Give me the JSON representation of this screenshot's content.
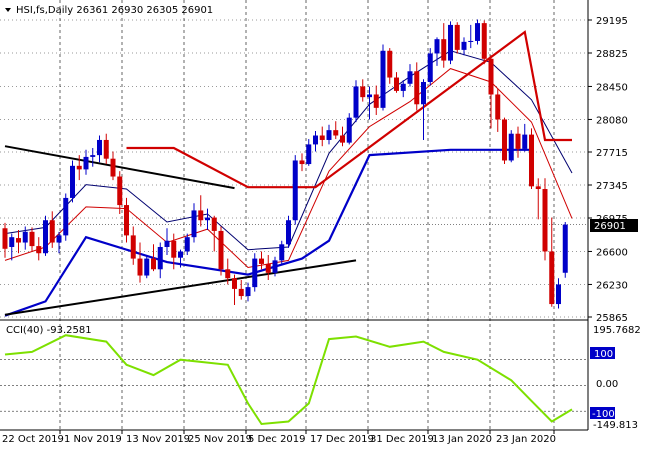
{
  "main": {
    "header": "HSI,fs,Daily  26361 26930 26305 26901",
    "current_price": "26901",
    "y_ticks": [
      "29195",
      "28825",
      "28450",
      "28080",
      "27715",
      "27345",
      "26975",
      "26600",
      "26230",
      "25865"
    ]
  },
  "cci": {
    "label": "CCI(40) -93.2581",
    "top_value": "195.7682",
    "level_high": "100",
    "zero": "0.00",
    "level_low": "-100",
    "bottom_value": "-149.813",
    "current_value": "-93.2581"
  },
  "x_labels": [
    "22 Oct 2019",
    "1 Nov 2019",
    "13 Nov 2019",
    "25 Nov 2019",
    "5 Dec 2019",
    "17 Dec 2019",
    "31 Dec 2019",
    "13 Jan 2020",
    "23 Jan 2020"
  ],
  "colors": {
    "bull": "#0000c8",
    "bear": "#d00000",
    "upper_band": "#0000c8",
    "lower_band": "#d00000",
    "fast_ma": "#d00000",
    "slow_ma": "#000070",
    "trend_line": "#000000",
    "cci_line": "#7de000",
    "grid": "#000000"
  },
  "chart_data": {
    "type": "candlestick",
    "title": "HSI,fs,Daily",
    "ohlc_last": {
      "open": 26361,
      "high": 26930,
      "low": 26305,
      "close": 26901
    },
    "x_labels": [
      "22 Oct 2019",
      "1 Nov 2019",
      "13 Nov 2019",
      "25 Nov 2019",
      "5 Dec 2019",
      "17 Dec 2019",
      "31 Dec 2019",
      "13 Jan 2020",
      "23 Jan 2020"
    ],
    "ylim": [
      25865,
      29195
    ],
    "candles": [
      [
        26860,
        26920,
        26530,
        26630
      ],
      [
        26650,
        26800,
        26500,
        26760
      ],
      [
        26750,
        26840,
        26580,
        26700
      ],
      [
        26700,
        26880,
        26620,
        26820
      ],
      [
        26820,
        26870,
        26600,
        26660
      ],
      [
        26660,
        26760,
        26500,
        26580
      ],
      [
        26580,
        27000,
        26550,
        26950
      ],
      [
        26950,
        27050,
        26640,
        26700
      ],
      [
        26700,
        26820,
        26580,
        26780
      ],
      [
        26780,
        27250,
        26720,
        27200
      ],
      [
        27200,
        27620,
        27150,
        27560
      ],
      [
        27560,
        27680,
        27400,
        27520
      ],
      [
        27520,
        27740,
        27460,
        27660
      ],
      [
        27660,
        27760,
        27550,
        27680
      ],
      [
        27680,
        27900,
        27600,
        27850
      ],
      [
        27850,
        27920,
        27580,
        27640
      ],
      [
        27640,
        27720,
        27400,
        27440
      ],
      [
        27440,
        27500,
        27020,
        27120
      ],
      [
        27120,
        27200,
        26700,
        26780
      ],
      [
        26780,
        26880,
        26450,
        26520
      ],
      [
        26520,
        26700,
        26250,
        26330
      ],
      [
        26330,
        26560,
        26300,
        26520
      ],
      [
        26520,
        26680,
        26380,
        26400
      ],
      [
        26400,
        26700,
        26300,
        26650
      ],
      [
        26650,
        26860,
        26560,
        26720
      ],
      [
        26720,
        26800,
        26400,
        26530
      ],
      [
        26530,
        26620,
        26420,
        26600
      ],
      [
        26600,
        26800,
        26560,
        26760
      ],
      [
        26760,
        27140,
        26700,
        27060
      ],
      [
        27060,
        27230,
        26880,
        26950
      ],
      [
        26950,
        27080,
        26840,
        26980
      ],
      [
        26980,
        27000,
        26600,
        26830
      ],
      [
        26830,
        26880,
        26330,
        26400
      ],
      [
        26400,
        26520,
        26230,
        26300
      ],
      [
        26300,
        26340,
        26000,
        26180
      ],
      [
        26180,
        26280,
        26060,
        26100
      ],
      [
        26100,
        26250,
        26040,
        26200
      ],
      [
        26200,
        26580,
        26150,
        26520
      ],
      [
        26520,
        26600,
        26400,
        26460
      ],
      [
        26460,
        26560,
        26280,
        26360
      ],
      [
        26360,
        26540,
        26320,
        26500
      ],
      [
        26500,
        26720,
        26460,
        26680
      ],
      [
        26680,
        27000,
        26640,
        26950
      ],
      [
        26950,
        27680,
        26900,
        27620
      ],
      [
        27620,
        27700,
        27500,
        27580
      ],
      [
        27580,
        27860,
        27560,
        27800
      ],
      [
        27800,
        27950,
        27720,
        27900
      ],
      [
        27900,
        28000,
        27780,
        27850
      ],
      [
        27850,
        28020,
        27800,
        27960
      ],
      [
        27960,
        28060,
        27860,
        27900
      ],
      [
        27900,
        28000,
        27780,
        27820
      ],
      [
        27820,
        28150,
        27800,
        28100
      ],
      [
        28100,
        28520,
        28050,
        28450
      ],
      [
        28450,
        28530,
        28280,
        28330
      ],
      [
        28330,
        28450,
        28080,
        28360
      ],
      [
        28360,
        28460,
        28130,
        28210
      ],
      [
        28210,
        28920,
        28180,
        28850
      ],
      [
        28850,
        28880,
        28480,
        28550
      ],
      [
        28550,
        28610,
        28380,
        28400
      ],
      [
        28400,
        28520,
        28330,
        28480
      ],
      [
        28480,
        28700,
        28450,
        28620
      ],
      [
        28620,
        28720,
        28180,
        28250
      ],
      [
        28250,
        28530,
        27850,
        28500
      ],
      [
        28500,
        28880,
        28460,
        28820
      ],
      [
        28820,
        29000,
        28680,
        28980
      ],
      [
        28980,
        29160,
        28660,
        28740
      ],
      [
        28740,
        29180,
        28700,
        29140
      ],
      [
        29140,
        29170,
        28820,
        28860
      ],
      [
        28860,
        29000,
        28800,
        28950
      ],
      [
        28950,
        29140,
        28880,
        28960
      ],
      [
        28960,
        29200,
        28920,
        29160
      ],
      [
        29160,
        29190,
        28700,
        28760
      ],
      [
        28760,
        28800,
        27980,
        28360
      ],
      [
        28360,
        28420,
        27940,
        28080
      ],
      [
        28080,
        28100,
        27580,
        27620
      ],
      [
        27620,
        27960,
        27600,
        27920
      ],
      [
        27920,
        28000,
        27650,
        27750
      ],
      [
        27750,
        28030,
        27720,
        27910
      ],
      [
        27910,
        27980,
        27300,
        27330
      ],
      [
        27330,
        27420,
        26960,
        27300
      ],
      [
        27300,
        27420,
        26500,
        26600
      ],
      [
        26600,
        26980,
        25980,
        26010
      ],
      [
        26010,
        26300,
        25960,
        26230
      ],
      [
        26361,
        26930,
        26305,
        26901
      ]
    ],
    "series": [
      {
        "name": "",
        "kind": "fast_ma",
        "points": [
          [
            0,
            26500
          ],
          [
            6,
            26650
          ],
          [
            12,
            27100
          ],
          [
            18,
            27080
          ],
          [
            24,
            26700
          ],
          [
            30,
            26850
          ],
          [
            36,
            26420
          ],
          [
            42,
            26500
          ],
          [
            48,
            27500
          ],
          [
            54,
            28000
          ],
          [
            60,
            28280
          ],
          [
            66,
            28650
          ],
          [
            72,
            28500
          ],
          [
            78,
            28050
          ],
          [
            84,
            26970
          ]
        ]
      },
      {
        "name": "",
        "kind": "slow_ma",
        "points": [
          [
            0,
            26800
          ],
          [
            6,
            26870
          ],
          [
            12,
            27350
          ],
          [
            18,
            27300
          ],
          [
            24,
            26930
          ],
          [
            30,
            27020
          ],
          [
            36,
            26620
          ],
          [
            42,
            26650
          ],
          [
            48,
            27700
          ],
          [
            54,
            28250
          ],
          [
            60,
            28560
          ],
          [
            66,
            28850
          ],
          [
            72,
            28720
          ],
          [
            78,
            28300
          ],
          [
            84,
            27480
          ]
        ]
      },
      {
        "name": "",
        "kind": "support_band",
        "points": [
          [
            0,
            25880
          ],
          [
            6,
            26040
          ],
          [
            12,
            26760
          ],
          [
            24,
            26480
          ],
          [
            36,
            26340
          ],
          [
            44,
            26520
          ],
          [
            48,
            26720
          ],
          [
            54,
            27680
          ],
          [
            66,
            27740
          ],
          [
            78,
            27740
          ]
        ]
      },
      {
        "name": "",
        "kind": "resistance_band",
        "points": [
          [
            18,
            27760
          ],
          [
            25,
            27760
          ],
          [
            36,
            27320
          ],
          [
            46,
            27320
          ],
          [
            77,
            29060
          ],
          [
            80,
            27850
          ],
          [
            84,
            27850
          ]
        ]
      }
    ],
    "trend_lines": [
      {
        "from": [
          0,
          27780
        ],
        "to": [
          34,
          27310
        ]
      },
      {
        "from": [
          0,
          25890
        ],
        "to": [
          52,
          26500
        ]
      }
    ],
    "cci": {
      "label": "CCI(40)",
      "current": -93.2581,
      "ylim": [
        -149.813,
        195.7682
      ],
      "levels": [
        100,
        0,
        -100
      ],
      "points": [
        [
          0,
          120
        ],
        [
          4,
          130
        ],
        [
          9,
          195
        ],
        [
          15,
          170
        ],
        [
          18,
          80
        ],
        [
          22,
          40
        ],
        [
          26,
          100
        ],
        [
          33,
          80
        ],
        [
          36,
          -70
        ],
        [
          38,
          -150
        ],
        [
          42,
          -140
        ],
        [
          45,
          -70
        ],
        [
          48,
          180
        ],
        [
          52,
          190
        ],
        [
          57,
          150
        ],
        [
          62,
          170
        ],
        [
          65,
          130
        ],
        [
          70,
          100
        ],
        [
          75,
          20
        ],
        [
          78,
          -60
        ],
        [
          81,
          -140
        ],
        [
          84,
          -93.2581
        ]
      ]
    }
  }
}
